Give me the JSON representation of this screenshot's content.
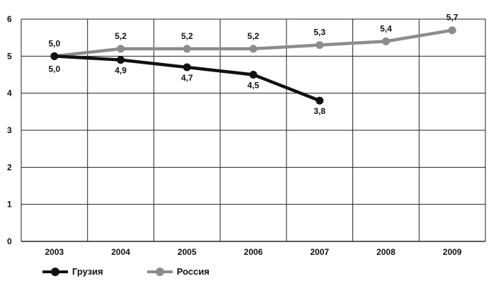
{
  "chart_data": {
    "type": "line",
    "categories": [
      "2003",
      "2004",
      "2005",
      "2006",
      "2007",
      "2008",
      "2009"
    ],
    "series": [
      {
        "name": "Грузия",
        "color": "#111111",
        "values": [
          5.0,
          4.9,
          4.7,
          4.5,
          3.8,
          null,
          null
        ],
        "labels": [
          "5,0",
          "4,9",
          "4,7",
          "4,5",
          "3,8",
          "",
          ""
        ]
      },
      {
        "name": "Россия",
        "color": "#8c8c8c",
        "values": [
          5.0,
          5.2,
          5.2,
          5.2,
          5.3,
          5.4,
          5.7
        ],
        "labels": [
          "5,0",
          "5,2",
          "5,2",
          "5,2",
          "5,3",
          "5,4",
          "5,7"
        ]
      }
    ],
    "yticks": [
      "0",
      "1",
      "2",
      "3",
      "4",
      "5",
      "6"
    ],
    "ylim": [
      0,
      6
    ],
    "grid": true,
    "legend_position": "bottom-left",
    "title": "",
    "xlabel": "",
    "ylabel": ""
  }
}
